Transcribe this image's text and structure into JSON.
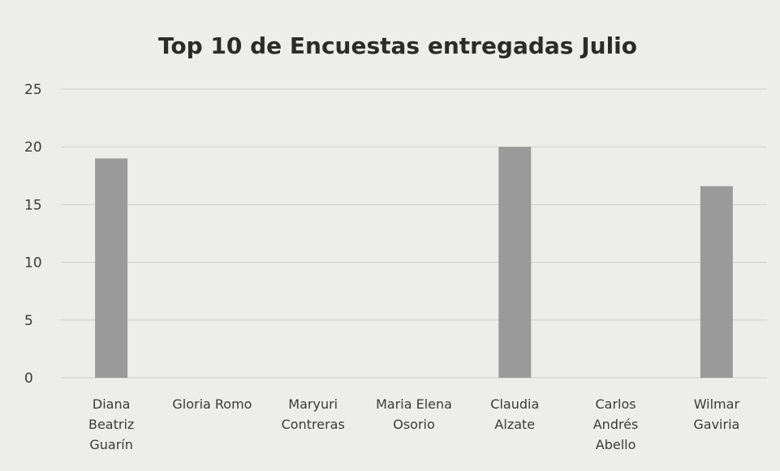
{
  "chart_data": {
    "type": "bar",
    "title": "Top 10 de Encuestas entregadas Julio",
    "xlabel": "",
    "ylabel": "",
    "ylim": [
      0,
      25
    ],
    "yticks": [
      0,
      5,
      10,
      15,
      20,
      25
    ],
    "grid": true,
    "legend": "none",
    "categories": [
      [
        "Diana",
        "Beatriz",
        "Guarín"
      ],
      [
        "Gloria Romo"
      ],
      [
        "Maryuri",
        "Contreras"
      ],
      [
        "Maria Elena",
        "Osorio"
      ],
      [
        "Claudia",
        "Alzate"
      ],
      [
        "Carlos",
        "Andrés",
        "Abello"
      ],
      [
        "Wilmar",
        "Gaviria"
      ]
    ],
    "values": [
      19,
      0,
      0,
      0,
      20,
      0,
      16.6
    ],
    "bar_color": "#9a9a9a",
    "grid_color": "#cfcfcd",
    "background_color": "#ededeb"
  }
}
